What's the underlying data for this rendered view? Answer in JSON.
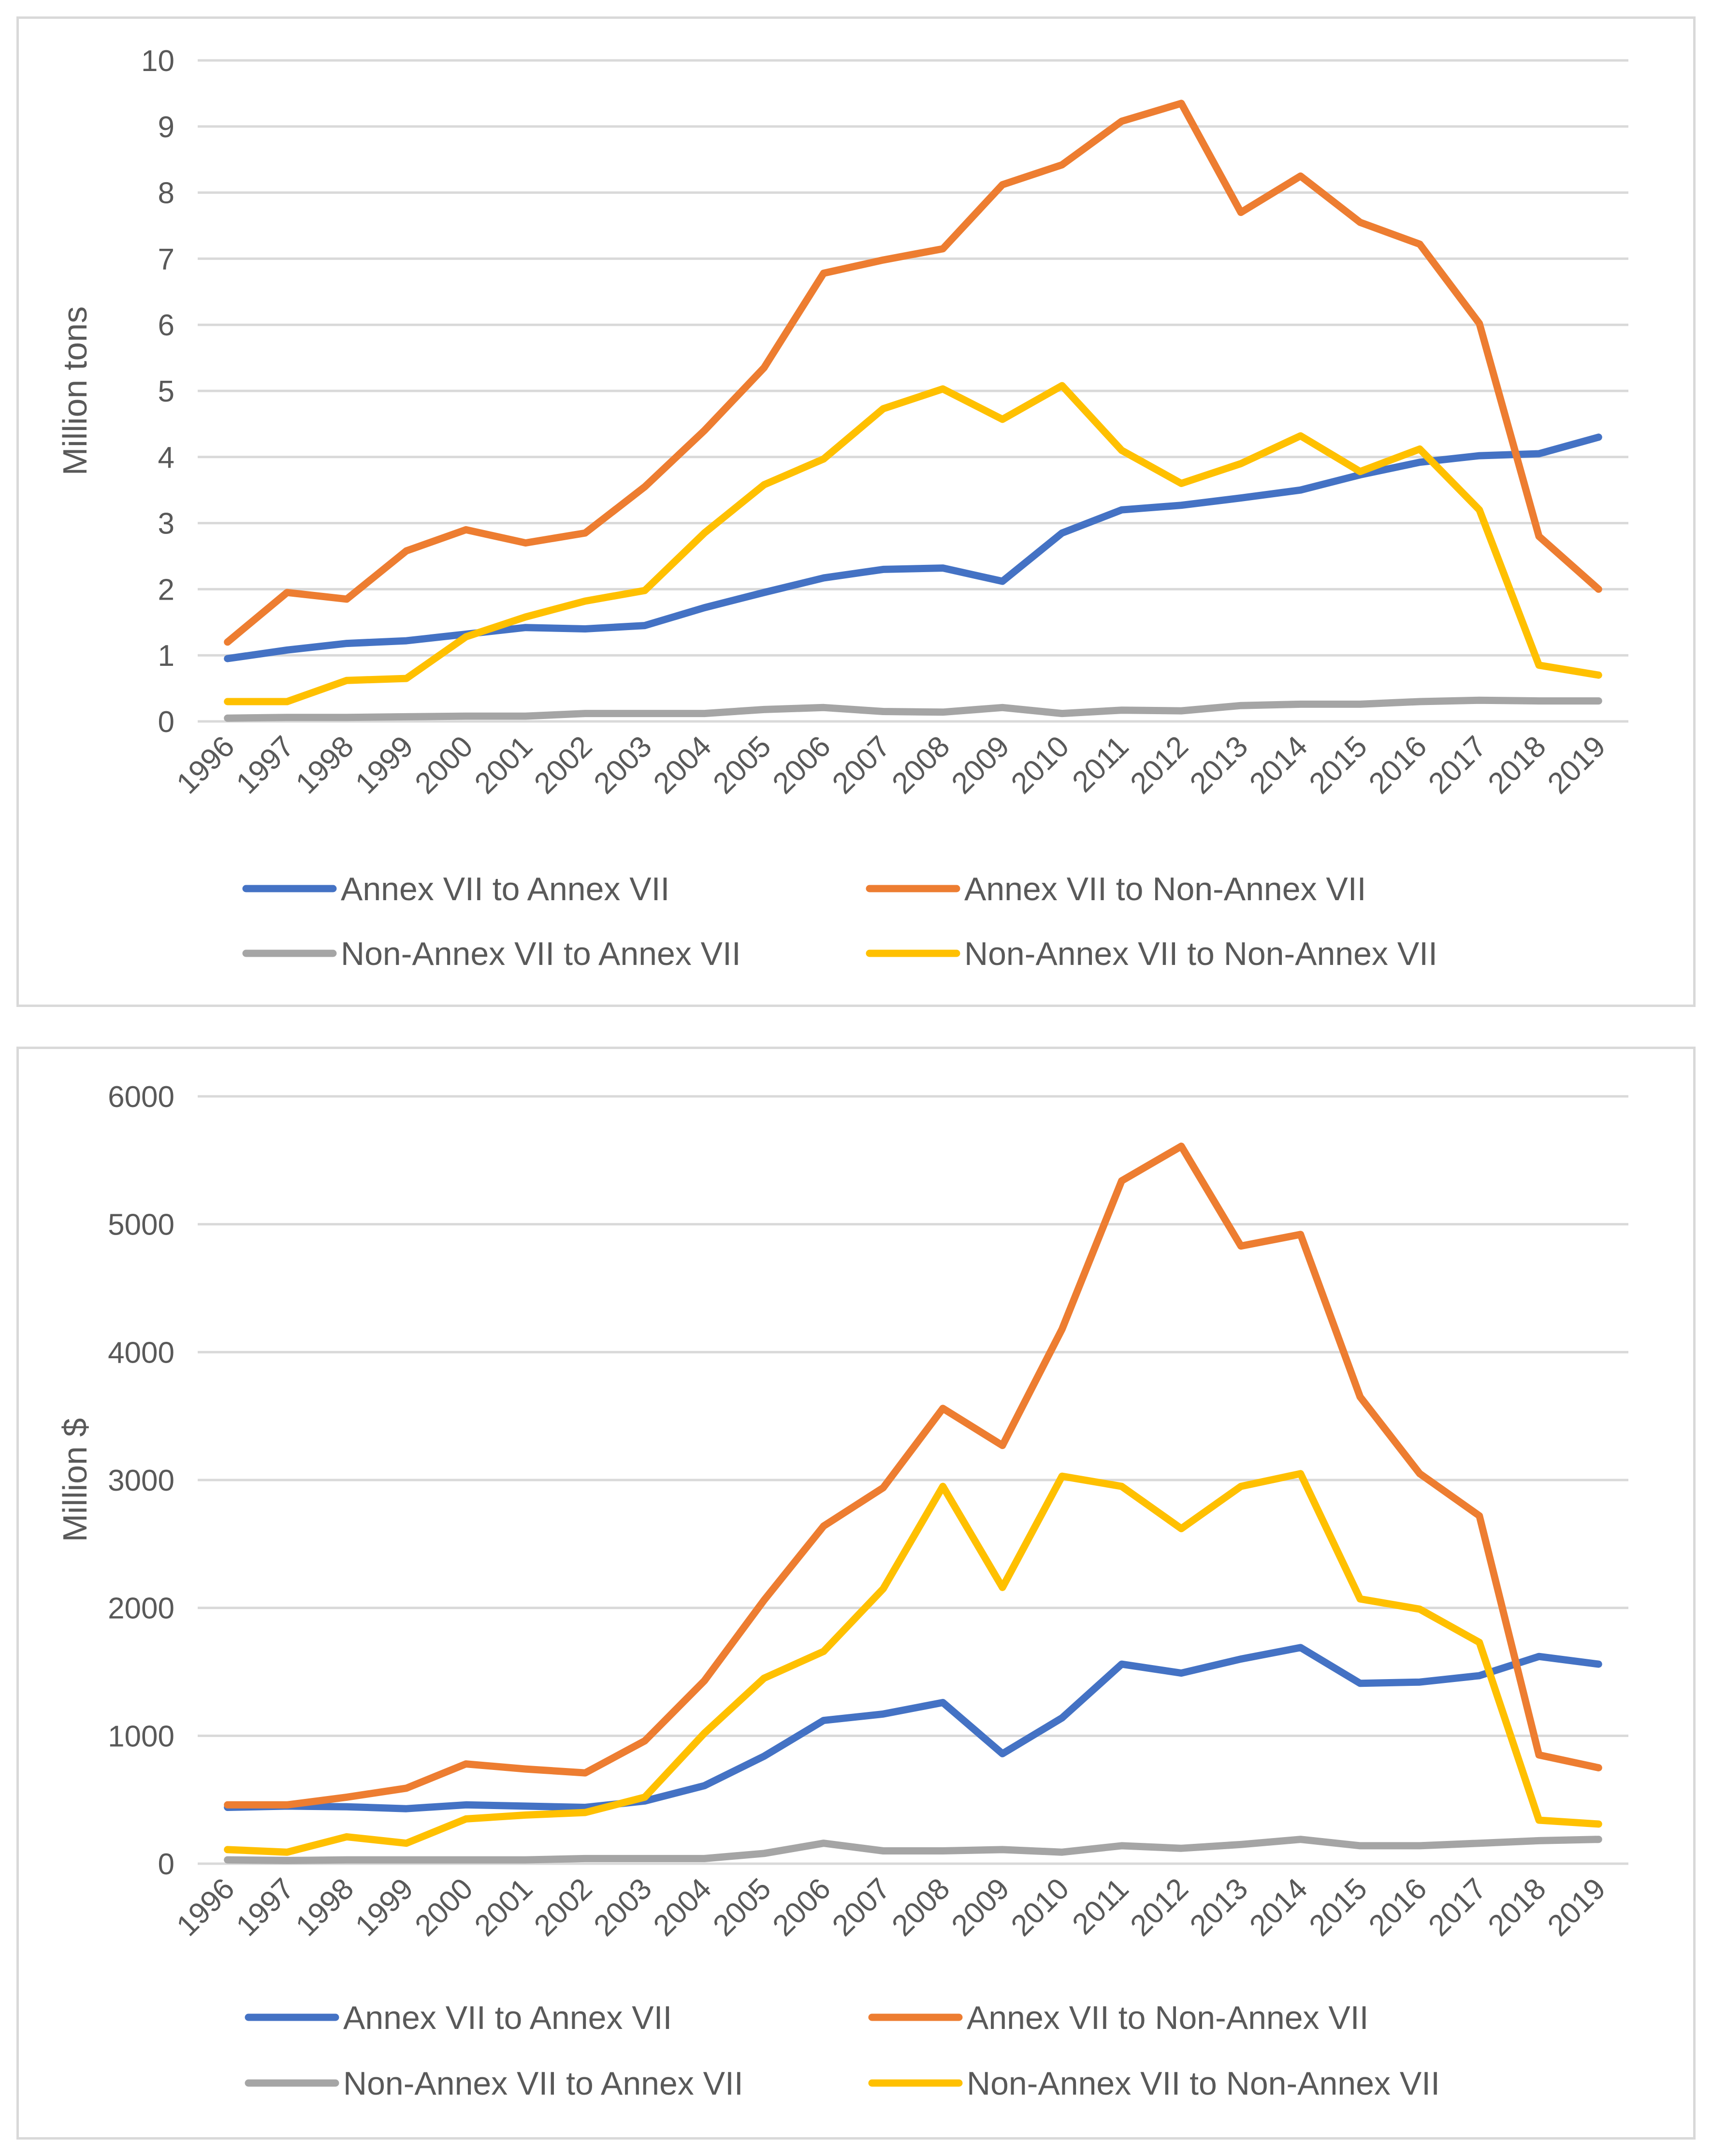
{
  "colors": {
    "annex_to_annex": "#4472c4",
    "annex_to_non": "#ed7d31",
    "non_to_annex": "#a5a5a5",
    "non_to_non": "#ffc000"
  },
  "chart_data": [
    {
      "type": "line",
      "title": "",
      "xlabel": "",
      "ylabel": "Million tons",
      "ylim": [
        0,
        10
      ],
      "yticks": [
        "0",
        "1",
        "2",
        "3",
        "4",
        "5",
        "6",
        "7",
        "8",
        "9",
        "10"
      ],
      "categories": [
        "1996",
        "1997",
        "1998",
        "1999",
        "2000",
        "2001",
        "2002",
        "2003",
        "2004",
        "2005",
        "2006",
        "2007",
        "2008",
        "2009",
        "2010",
        "2011",
        "2012",
        "2013",
        "2014",
        "2015",
        "2016",
        "2017",
        "2018",
        "2019"
      ],
      "series": [
        {
          "name": "Annex VII to Annex VII",
          "color_key": "annex_to_annex",
          "values": [
            0.95,
            1.08,
            1.18,
            1.22,
            1.32,
            1.42,
            1.4,
            1.45,
            1.72,
            1.95,
            2.17,
            2.3,
            2.32,
            2.12,
            2.85,
            3.2,
            3.27,
            3.38,
            3.5,
            3.73,
            3.92,
            4.02,
            4.05,
            4.3
          ]
        },
        {
          "name": "Annex VII to Non-Annex VII",
          "color_key": "annex_to_non",
          "values": [
            1.2,
            1.95,
            1.85,
            2.58,
            2.9,
            2.7,
            2.85,
            3.55,
            4.4,
            5.35,
            6.78,
            6.98,
            7.15,
            8.12,
            8.42,
            9.08,
            9.35,
            7.7,
            8.25,
            7.55,
            7.22,
            6.02,
            2.8,
            2.0
          ]
        },
        {
          "name": "Non-Annex VII to Annex VII",
          "color_key": "non_to_annex",
          "values": [
            0.05,
            0.06,
            0.06,
            0.07,
            0.08,
            0.08,
            0.12,
            0.12,
            0.12,
            0.18,
            0.21,
            0.15,
            0.14,
            0.21,
            0.12,
            0.17,
            0.16,
            0.24,
            0.26,
            0.26,
            0.3,
            0.32,
            0.31,
            0.31
          ]
        },
        {
          "name": "Non-Annex VII to Non-Annex VII",
          "color_key": "non_to_non",
          "values": [
            0.3,
            0.3,
            0.62,
            0.65,
            1.28,
            1.58,
            1.82,
            1.98,
            2.85,
            3.58,
            3.97,
            4.73,
            5.03,
            4.57,
            5.08,
            4.1,
            3.6,
            3.9,
            4.32,
            3.78,
            4.12,
            3.2,
            0.85,
            0.7
          ]
        }
      ],
      "legend_position": "bottom"
    },
    {
      "type": "line",
      "title": "",
      "xlabel": "",
      "ylabel": "Million $",
      "ylim": [
        0,
        6000
      ],
      "yticks": [
        "0",
        "1000",
        "2000",
        "3000",
        "4000",
        "5000",
        "6000"
      ],
      "categories": [
        "1996",
        "1997",
        "1998",
        "1999",
        "2000",
        "2001",
        "2002",
        "2003",
        "2004",
        "2005",
        "2006",
        "2007",
        "2008",
        "2009",
        "2010",
        "2011",
        "2012",
        "2013",
        "2014",
        "2015",
        "2016",
        "2017",
        "2018",
        "2019"
      ],
      "series": [
        {
          "name": "Annex VII to Annex VII",
          "color_key": "annex_to_annex",
          "values": [
            440,
            450,
            445,
            430,
            460,
            450,
            440,
            490,
            610,
            840,
            1120,
            1170,
            1260,
            860,
            1140,
            1560,
            1490,
            1600,
            1690,
            1410,
            1420,
            1470,
            1620,
            1560
          ]
        },
        {
          "name": "Annex VII to Non-Annex VII",
          "color_key": "annex_to_non",
          "values": [
            460,
            460,
            520,
            590,
            780,
            740,
            710,
            960,
            1430,
            2060,
            2640,
            2940,
            3560,
            3270,
            4180,
            5340,
            5610,
            4830,
            4920,
            3650,
            3050,
            2720,
            850,
            750
          ]
        },
        {
          "name": "Non-Annex VII to Annex VII",
          "color_key": "non_to_annex",
          "values": [
            30,
            25,
            30,
            30,
            30,
            30,
            40,
            40,
            40,
            80,
            160,
            100,
            100,
            110,
            90,
            140,
            120,
            150,
            190,
            140,
            140,
            160,
            180,
            190
          ]
        },
        {
          "name": "Non-Annex VII to Non-Annex VII",
          "color_key": "non_to_non",
          "values": [
            110,
            90,
            210,
            160,
            350,
            380,
            400,
            520,
            1020,
            1450,
            1660,
            2150,
            2950,
            2160,
            3030,
            2950,
            2620,
            2950,
            3050,
            2070,
            1990,
            1730,
            340,
            310
          ]
        }
      ],
      "legend_position": "bottom"
    }
  ]
}
